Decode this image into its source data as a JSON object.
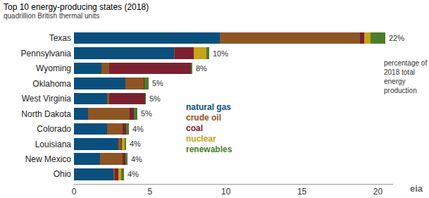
{
  "chart_data": {
    "type": "bar",
    "orientation": "horizontal",
    "stacked": true,
    "title": "Top 10 energy-producing states (2018)",
    "subtitle": "quadrillion British thermal units",
    "categories": [
      "Texas",
      "Pennsylvania",
      "Wyoming",
      "Oklahoma",
      "West Virginia",
      "North Dakota",
      "Colorado",
      "Louisiana",
      "New Mexico",
      "Ohio"
    ],
    "series": [
      {
        "name": "natural gas",
        "color": "#0b4f7c",
        "values": [
          9.6,
          6.6,
          1.8,
          3.4,
          2.2,
          0.95,
          2.2,
          2.9,
          1.7,
          2.6
        ]
      },
      {
        "name": "crude oil",
        "color": "#8d5524",
        "values": [
          9.2,
          0.04,
          0.5,
          1.2,
          0.1,
          2.7,
          1.0,
          0.2,
          1.5,
          0.1
        ]
      },
      {
        "name": "coal",
        "color": "#7b2132",
        "values": [
          0.3,
          1.26,
          5.4,
          0.02,
          2.4,
          0.3,
          0.25,
          0.03,
          0.2,
          0.2
        ]
      },
      {
        "name": "nuclear",
        "color": "#c9a215",
        "values": [
          0.4,
          0.8,
          0,
          0,
          0,
          0,
          0,
          0.2,
          0,
          0.2
        ]
      },
      {
        "name": "renewables",
        "color": "#4b7d2b",
        "values": [
          1.0,
          0.2,
          0.1,
          0.3,
          0.05,
          0.2,
          0.15,
          0.1,
          0.1,
          0.2
        ]
      }
    ],
    "share_labels": [
      "22%",
      "10%",
      "8%",
      "5%",
      "5%",
      "5%",
      "4%",
      "4%",
      "4%",
      "4%"
    ],
    "annotations": [
      "percentage of",
      "2018 total",
      "energy",
      "production"
    ],
    "source": "eia",
    "xlim": [
      0,
      21
    ],
    "xticks": [
      0,
      5,
      10,
      15,
      20
    ],
    "grid": false
  }
}
